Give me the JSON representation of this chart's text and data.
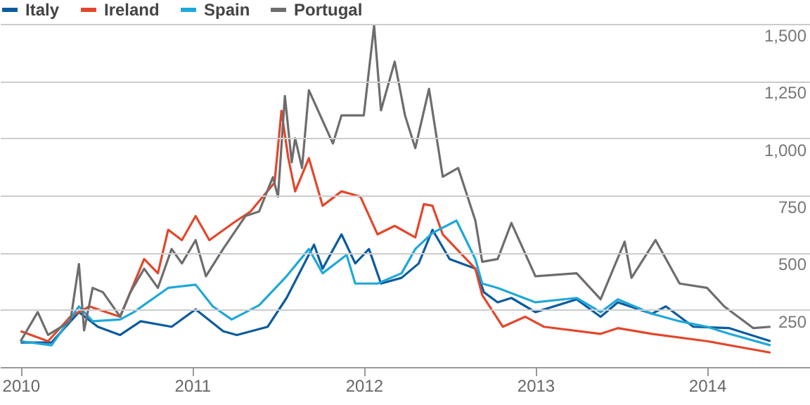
{
  "chart_data": {
    "type": "line",
    "legend": "top left",
    "grid": "y",
    "xlim": [
      2009.88,
      2014.6
    ],
    "xticks": [
      2010,
      2011,
      2012,
      2013,
      2014
    ],
    "ylim": [
      0,
      1500
    ],
    "yticks": [
      250,
      500,
      750,
      {
        "value": 1000,
        "label": "1,000"
      },
      {
        "value": 1250,
        "label": "1,250"
      },
      {
        "value": 1500,
        "label": "1,500"
      }
    ],
    "series": [
      {
        "name": "Italy",
        "color": "#0b5b9e",
        "x": [
          2010.0,
          2010.18,
          2010.34,
          2010.45,
          2010.58,
          2010.7,
          2010.88,
          2011.02,
          2011.18,
          2011.26,
          2011.44,
          2011.55,
          2011.71,
          2011.76,
          2011.87,
          2011.95,
          2012.03,
          2012.1,
          2012.22,
          2012.32,
          2012.4,
          2012.5,
          2012.65,
          2012.7,
          2012.78,
          2012.86,
          2013.0,
          2013.24,
          2013.38,
          2013.48,
          2013.68,
          2013.76,
          2013.92,
          2014.13,
          2014.37
        ],
        "values": [
          107,
          107,
          240,
          176,
          140,
          200,
          176,
          252,
          157,
          140,
          176,
          302,
          535,
          430,
          580,
          453,
          516,
          365,
          390,
          453,
          600,
          472,
          430,
          327,
          283,
          302,
          240,
          296,
          220,
          283,
          233,
          265,
          176,
          170,
          113
        ]
      },
      {
        "name": "Ireland",
        "color": "#e2472b",
        "x": [
          2010.0,
          2010.16,
          2010.29,
          2010.4,
          2010.58,
          2010.72,
          2010.8,
          2010.86,
          2010.94,
          2011.02,
          2011.1,
          2011.24,
          2011.34,
          2011.48,
          2011.52,
          2011.56,
          2011.6,
          2011.68,
          2011.76,
          2011.87,
          2011.98,
          2012.08,
          2012.18,
          2012.3,
          2012.35,
          2012.4,
          2012.46,
          2012.65,
          2012.69,
          2012.81,
          2012.94,
          2013.05,
          2013.38,
          2013.48,
          2013.68,
          2014.0,
          2014.37
        ],
        "values": [
          157,
          113,
          220,
          265,
          220,
          472,
          410,
          600,
          555,
          660,
          555,
          630,
          680,
          806,
          1120,
          913,
          768,
          913,
          705,
          768,
          745,
          580,
          617,
          567,
          712,
          705,
          580,
          430,
          315,
          176,
          220,
          176,
          145,
          170,
          145,
          113,
          63
        ]
      },
      {
        "name": "Spain",
        "color": "#1fa8d8",
        "x": [
          2010.0,
          2010.18,
          2010.34,
          2010.42,
          2010.58,
          2010.66,
          2010.86,
          2011.02,
          2011.12,
          2011.23,
          2011.39,
          2011.55,
          2011.68,
          2011.76,
          2011.9,
          2011.95,
          2012.08,
          2012.22,
          2012.3,
          2012.4,
          2012.54,
          2012.65,
          2012.69,
          2012.78,
          2013.0,
          2013.24,
          2013.38,
          2013.48,
          2013.68,
          2013.84,
          2014.0,
          2014.13,
          2014.37
        ],
        "values": [
          113,
          95,
          265,
          200,
          208,
          240,
          346,
          360,
          265,
          208,
          270,
          397,
          516,
          410,
          490,
          365,
          365,
          410,
          516,
          586,
          640,
          472,
          365,
          346,
          283,
          302,
          240,
          296,
          233,
          200,
          176,
          145,
          95
        ]
      },
      {
        "name": "Portugal",
        "color": "#6d6d6d",
        "x": [
          2010.0,
          2010.1,
          2010.16,
          2010.29,
          2010.34,
          2010.37,
          2010.42,
          2010.48,
          2010.58,
          2010.64,
          2010.72,
          2010.8,
          2010.88,
          2010.94,
          2011.02,
          2011.08,
          2011.18,
          2011.31,
          2011.39,
          2011.47,
          2011.5,
          2011.54,
          2011.58,
          2011.6,
          2011.64,
          2011.68,
          2011.82,
          2011.87,
          2012.0,
          2012.06,
          2012.1,
          2012.18,
          2012.24,
          2012.3,
          2012.38,
          2012.46,
          2012.55,
          2012.65,
          2012.69,
          2012.78,
          2012.86,
          2013.0,
          2013.24,
          2013.38,
          2013.52,
          2013.56,
          2013.7,
          2013.84,
          2014.0,
          2014.1,
          2014.27,
          2014.37
        ],
        "values": [
          113,
          240,
          140,
          200,
          450,
          160,
          346,
          327,
          220,
          327,
          430,
          346,
          516,
          453,
          555,
          397,
          516,
          660,
          680,
          830,
          745,
          1185,
          895,
          1000,
          870,
          1210,
          977,
          1100,
          1100,
          1493,
          1122,
          1335,
          1100,
          957,
          1216,
          832,
          870,
          640,
          460,
          472,
          630,
          397,
          410,
          296,
          548,
          390,
          555,
          365,
          346,
          265,
          170,
          176
        ]
      }
    ]
  }
}
